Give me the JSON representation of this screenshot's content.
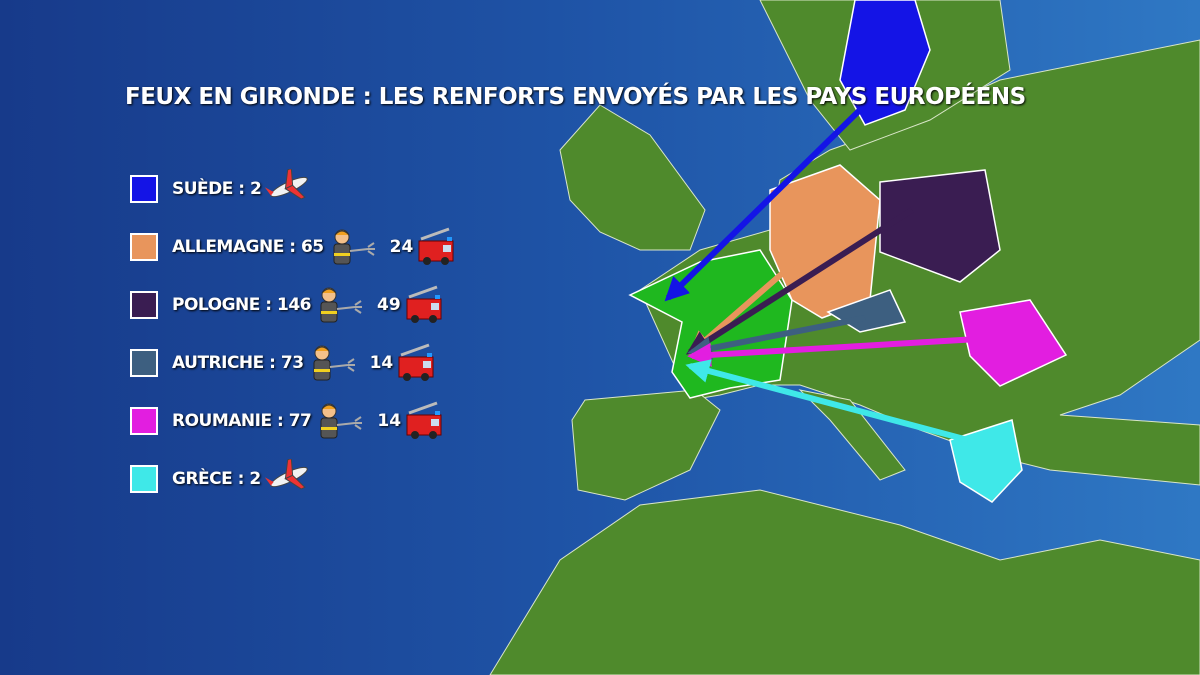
{
  "title": "FEUX EN GIRONDE : LES RENFORTS ENVOYÉS PAR LES PAYS EUROPÉENS",
  "legend": [
    {
      "label": "SUÈDE : 2",
      "color": "#1414e6",
      "asset": "plane"
    },
    {
      "label": "ALLEMAGNE : 65",
      "color": "#e8955c",
      "asset": "firefighter",
      "trucks": 24
    },
    {
      "label": "POLOGNE : 146",
      "color": "#3a1d52",
      "asset": "firefighter",
      "trucks": 49
    },
    {
      "label": "AUTRICHE : 73",
      "color": "#3d5f80",
      "asset": "firefighter",
      "trucks": 14
    },
    {
      "label": "ROUMANIE : 77",
      "color": "#e21ee0",
      "asset": "firefighter",
      "trucks": 14
    },
    {
      "label": "GRÈCE : 2",
      "color": "#3fe8e8",
      "asset": "plane"
    }
  ]
}
